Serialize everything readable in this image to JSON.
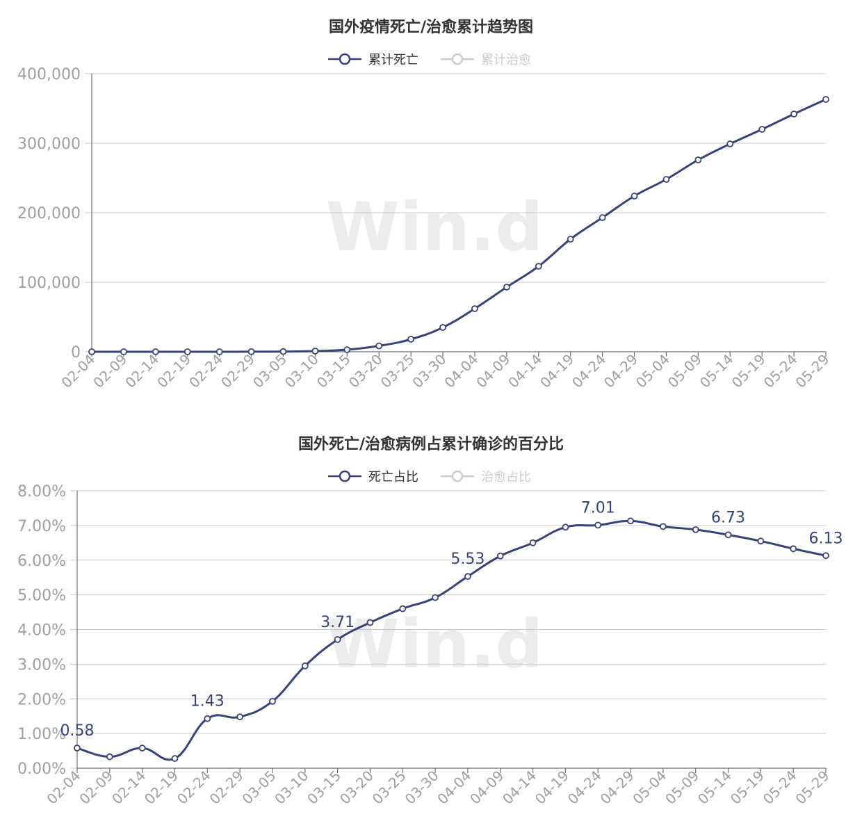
{
  "colors": {
    "death": "#36427a",
    "cure_inactive": "#cccccc",
    "grid": "#c9c9c9",
    "tick": "#9e9e9e",
    "title": "#333333"
  },
  "watermark": "Win.d",
  "charts": {
    "cumulative": {
      "title": "国外疫情死亡/治愈累计趋势图"
    },
    "ratio": {
      "title": "国外死亡/治愈病例占累计确诊的百分比"
    }
  },
  "chart_data": [
    {
      "type": "line",
      "title": "国外疫情死亡/治愈累计趋势图",
      "legend": [
        "累计死亡",
        "累计治愈"
      ],
      "legend_inactive": [
        "累计治愈"
      ],
      "legend_placement": "top-center",
      "grid": true,
      "ylim": [
        0,
        400000
      ],
      "yticks": [
        "0",
        "100,000",
        "200,000",
        "300,000",
        "400,000"
      ],
      "x_tick_labels": [
        "02-04",
        "02-09",
        "02-14",
        "02-19",
        "02-24",
        "02-29",
        "03-05",
        "03-10",
        "03-15",
        "03-20",
        "03-25",
        "03-30",
        "04-04",
        "04-09",
        "04-14",
        "04-19",
        "04-24",
        "04-29",
        "05-04",
        "05-09",
        "05-14",
        "05-19",
        "05-24",
        "05-29"
      ],
      "series": [
        {
          "name": "累计死亡",
          "x": [
            "02-04",
            "02-09",
            "02-14",
            "02-19",
            "02-24",
            "02-29",
            "03-05",
            "03-10",
            "03-15",
            "03-20",
            "03-25",
            "03-30",
            "04-04",
            "04-09",
            "04-14",
            "04-19",
            "04-24",
            "04-29",
            "05-04",
            "05-09",
            "05-14",
            "05-19",
            "05-24",
            "05-29"
          ],
          "values": [
            0,
            0,
            0,
            0,
            0,
            100,
            300,
            1000,
            3000,
            8500,
            18000,
            35000,
            62000,
            93000,
            123000,
            162000,
            193000,
            224000,
            248000,
            276000,
            299000,
            320000,
            342000,
            363000
          ]
        },
        {
          "name": "累计治愈",
          "values": []
        }
      ]
    },
    {
      "type": "line",
      "title": "国外死亡/治愈病例占累计确诊的百分比",
      "legend": [
        "死亡占比",
        "治愈占比"
      ],
      "legend_inactive": [
        "治愈占比"
      ],
      "legend_placement": "top-center",
      "grid": true,
      "ylim": [
        0,
        8
      ],
      "yticks": [
        "0.00%",
        "1.00%",
        "2.00%",
        "3.00%",
        "4.00%",
        "5.00%",
        "6.00%",
        "7.00%",
        "8.00%"
      ],
      "x_tick_labels": [
        "02-04",
        "02-09",
        "02-14",
        "02-19",
        "02-24",
        "02-29",
        "03-05",
        "03-10",
        "03-15",
        "03-20",
        "03-25",
        "03-30",
        "04-04",
        "04-09",
        "04-14",
        "04-19",
        "04-24",
        "04-29",
        "05-04",
        "05-09",
        "05-14",
        "05-19",
        "05-24",
        "05-29"
      ],
      "series": [
        {
          "name": "死亡占比",
          "x": [
            "02-04",
            "02-09",
            "02-14",
            "02-19",
            "02-24",
            "02-29",
            "03-05",
            "03-10",
            "03-15",
            "03-20",
            "03-25",
            "03-30",
            "04-04",
            "04-09",
            "04-14",
            "04-19",
            "04-24",
            "04-29",
            "05-04",
            "05-09",
            "05-14",
            "05-19",
            "05-24",
            "05-29"
          ],
          "values": [
            0.58,
            0.33,
            0.58,
            0.28,
            1.43,
            1.48,
            1.93,
            2.95,
            3.71,
            4.2,
            4.6,
            4.92,
            5.53,
            6.12,
            6.5,
            6.95,
            7.01,
            7.13,
            6.97,
            6.88,
            6.73,
            6.55,
            6.33,
            6.13
          ],
          "data_labels": [
            {
              "x": "02-04",
              "text": "0.58"
            },
            {
              "x": "02-24",
              "text": "1.43"
            },
            {
              "x": "03-15",
              "text": "3.71"
            },
            {
              "x": "04-04",
              "text": "5.53"
            },
            {
              "x": "04-24",
              "text": "7.01"
            },
            {
              "x": "05-14",
              "text": "6.73"
            },
            {
              "x": "05-29",
              "text": "6.13"
            }
          ]
        },
        {
          "name": "治愈占比",
          "values": []
        }
      ]
    }
  ]
}
